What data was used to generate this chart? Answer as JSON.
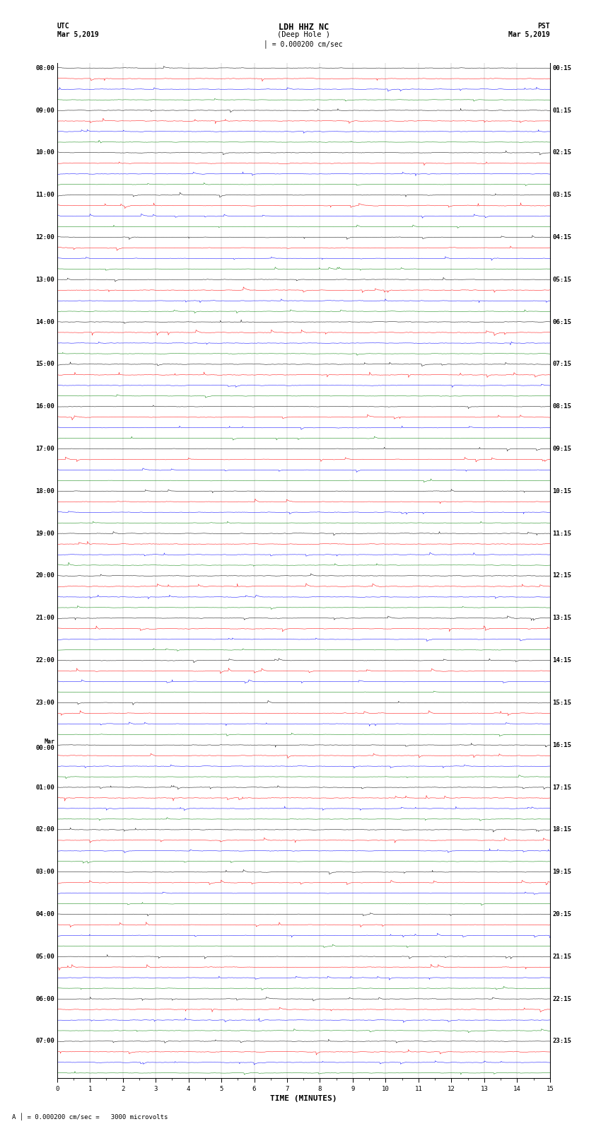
{
  "title_line1": "LDH HHZ NC",
  "title_line2": "(Deep Hole )",
  "scale_label": "= 0.000200 cm/sec",
  "bottom_label": "= 0.000200 cm/sec =   3000 microvolts",
  "xlabel": "TIME (MINUTES)",
  "utc_top": "UTC",
  "utc_date": "Mar 5,2019",
  "pst_top": "PST",
  "pst_date": "Mar 5,2019",
  "colors": [
    "black",
    "red",
    "blue",
    "green"
  ],
  "left_times": [
    "08:00",
    "09:00",
    "10:00",
    "11:00",
    "12:00",
    "13:00",
    "14:00",
    "15:00",
    "16:00",
    "17:00",
    "18:00",
    "19:00",
    "20:00",
    "21:00",
    "22:00",
    "23:00",
    "Mar\n00:00",
    "01:00",
    "02:00",
    "03:00",
    "04:00",
    "05:00",
    "06:00",
    "07:00"
  ],
  "right_times": [
    "00:15",
    "01:15",
    "02:15",
    "03:15",
    "04:15",
    "05:15",
    "06:15",
    "07:15",
    "08:15",
    "09:15",
    "10:15",
    "11:15",
    "12:15",
    "13:15",
    "14:15",
    "15:15",
    "16:15",
    "17:15",
    "18:15",
    "19:15",
    "20:15",
    "21:15",
    "22:15",
    "23:15"
  ],
  "n_hours": 24,
  "traces_per_hour": 4,
  "x_min": 0,
  "x_max": 15,
  "fig_width": 8.5,
  "fig_height": 16.13,
  "dpi": 100,
  "bg_color": "white",
  "label_fontsize": 6.5,
  "title_fontsize": 8.5,
  "axis_label_fontsize": 8,
  "header_fontsize": 7
}
